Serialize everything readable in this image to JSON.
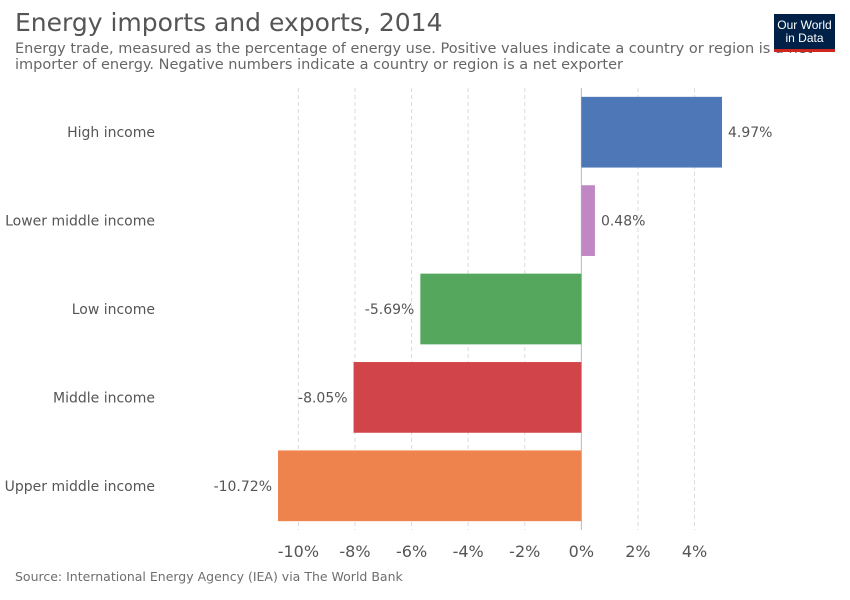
{
  "header": {
    "title": "Energy imports and exports, 2014",
    "subtitle": "Energy trade, measured as the percentage of energy use. Positive values indicate a country or region is a net importer of energy. Negative numbers indicate a country or region is a net exporter"
  },
  "logo": {
    "line1": "Our World",
    "line2": "in Data"
  },
  "footer": {
    "source": "Source: International Energy Agency (IEA) via The World Bank"
  },
  "chart_data": {
    "type": "bar",
    "orientation": "horizontal",
    "title": "Energy imports and exports, 2014",
    "categories": [
      "High income",
      "Lower middle income",
      "Low income",
      "Middle income",
      "Upper middle income"
    ],
    "values": [
      4.97,
      0.48,
      -5.69,
      -8.05,
      -10.72
    ],
    "value_labels": [
      "4.97%",
      "0.48%",
      "-5.69%",
      "-8.05%",
      "-10.72%"
    ],
    "colors": [
      "#4e77b7",
      "#c087c4",
      "#54a75d",
      "#d1454a",
      "#ee834d"
    ],
    "xlim": [
      -10.72,
      4.97
    ],
    "xticks": [
      -10,
      -8,
      -6,
      -4,
      -2,
      0,
      2,
      4
    ],
    "xtick_labels": [
      "-10%",
      "-8%",
      "-6%",
      "-4%",
      "-2%",
      "0%",
      "2%",
      "4%"
    ],
    "grid": true,
    "legend": "none"
  }
}
